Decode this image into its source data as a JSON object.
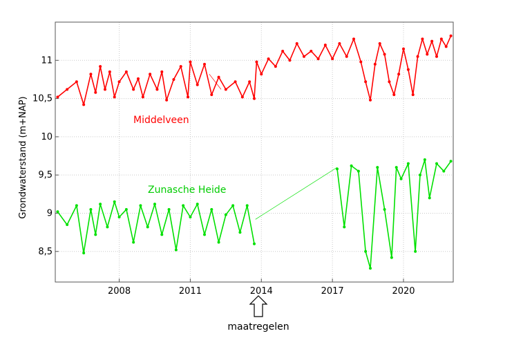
{
  "chart_data": {
    "type": "scatter",
    "title": "",
    "xlabel": "",
    "ylabel": "Grondwaterstand (m+NAP)",
    "xlim": [
      2005.3,
      2022.1
    ],
    "ylim": [
      8.1,
      11.5
    ],
    "xticks": [
      2008,
      2011,
      2014,
      2017,
      2020
    ],
    "xtick_labels": [
      "2008",
      "2011",
      "2014",
      "2017",
      "2020"
    ],
    "yticks": [
      8.5,
      9,
      9.5,
      10,
      10.5,
      11
    ],
    "ytick_labels": [
      "8,5",
      "9",
      "9,5",
      "10",
      "10,5",
      "11"
    ],
    "grid": true,
    "colors": {
      "Middelveen": "#ff0000",
      "Zunasche Heide": "#00e000"
    },
    "series": [
      {
        "name": "Middelveen",
        "x": [
          2005.4,
          2005.8,
          2006.2,
          2006.5,
          2006.8,
          2007.0,
          2007.2,
          2007.4,
          2007.6,
          2007.8,
          2008.0,
          2008.3,
          2008.6,
          2008.8,
          2009.0,
          2009.3,
          2009.6,
          2009.8,
          2010.0,
          2010.3,
          2010.6,
          2010.9,
          2011.0,
          2011.3,
          2011.6,
          2011.9,
          2012.2,
          2012.5,
          2012.9,
          2013.2,
          2013.5,
          2013.7,
          2013.8,
          2014.0,
          2014.3,
          2014.6,
          2014.9,
          2015.2,
          2015.5,
          2015.8,
          2016.1,
          2016.4,
          2016.7,
          2017.0,
          2017.3,
          2017.6,
          2017.9,
          2018.2,
          2018.4,
          2018.6,
          2018.8,
          2019.0,
          2019.2,
          2019.4,
          2019.6,
          2019.8,
          2020.0,
          2020.2,
          2020.4,
          2020.6,
          2020.8,
          2021.0,
          2021.2,
          2021.4,
          2021.6,
          2021.8,
          2022.0
        ],
        "y": [
          10.52,
          10.62,
          10.72,
          10.42,
          10.82,
          10.58,
          10.92,
          10.62,
          10.85,
          10.52,
          10.72,
          10.85,
          10.62,
          10.76,
          10.52,
          10.82,
          10.62,
          10.85,
          10.48,
          10.75,
          10.92,
          10.52,
          10.98,
          10.68,
          10.95,
          10.55,
          10.78,
          10.62,
          10.72,
          10.52,
          10.72,
          10.5,
          10.98,
          10.82,
          11.02,
          10.92,
          11.12,
          11.0,
          11.22,
          11.05,
          11.12,
          11.02,
          11.2,
          11.02,
          11.22,
          11.05,
          11.28,
          10.98,
          10.72,
          10.48,
          10.95,
          11.22,
          11.08,
          10.72,
          10.55,
          10.82,
          11.15,
          10.88,
          10.55,
          11.05,
          11.28,
          11.08,
          11.25,
          11.05,
          11.28,
          11.18,
          11.32
        ]
      },
      {
        "name": "Zunasche Heide",
        "x": [
          2005.4,
          2005.8,
          2006.2,
          2006.5,
          2006.8,
          2007.0,
          2007.2,
          2007.5,
          2007.8,
          2008.0,
          2008.3,
          2008.6,
          2008.9,
          2009.2,
          2009.5,
          2009.8,
          2010.1,
          2010.4,
          2010.7,
          2011.0,
          2011.3,
          2011.6,
          2011.9,
          2012.2,
          2012.5,
          2012.8,
          2013.1,
          2013.4,
          2013.7,
          2017.2,
          2017.5,
          2017.8,
          2018.1,
          2018.4,
          2018.6,
          2018.9,
          2019.2,
          2019.5,
          2019.7,
          2019.9,
          2020.2,
          2020.5,
          2020.7,
          2020.9,
          2021.1,
          2021.4,
          2021.7,
          2022.0
        ],
        "y": [
          9.02,
          8.85,
          9.1,
          8.48,
          9.05,
          8.72,
          9.12,
          8.82,
          9.15,
          8.95,
          9.05,
          8.62,
          9.1,
          8.82,
          9.12,
          8.72,
          9.05,
          8.52,
          9.1,
          8.95,
          9.12,
          8.72,
          9.05,
          8.62,
          8.98,
          9.1,
          8.75,
          9.1,
          8.6,
          9.58,
          8.82,
          9.62,
          9.55,
          8.5,
          8.28,
          9.6,
          9.05,
          8.42,
          9.6,
          9.45,
          9.65,
          8.5,
          9.5,
          9.7,
          9.2,
          9.65,
          9.55,
          9.68
        ]
      }
    ],
    "gap_connections": [
      {
        "series": "Middelveen",
        "from": [
          2011.8,
          10.82
        ],
        "to": [
          2012.3,
          10.62
        ]
      },
      {
        "series": "Zunasche Heide",
        "from": [
          2013.75,
          8.92
        ],
        "to": [
          2017.2,
          9.6
        ]
      }
    ],
    "annotations": {
      "middelveen_label": "Middelveen",
      "zunasche_label": "Zunasche Heide",
      "measures_label": "maatregelen",
      "measures_x": 2014
    }
  }
}
